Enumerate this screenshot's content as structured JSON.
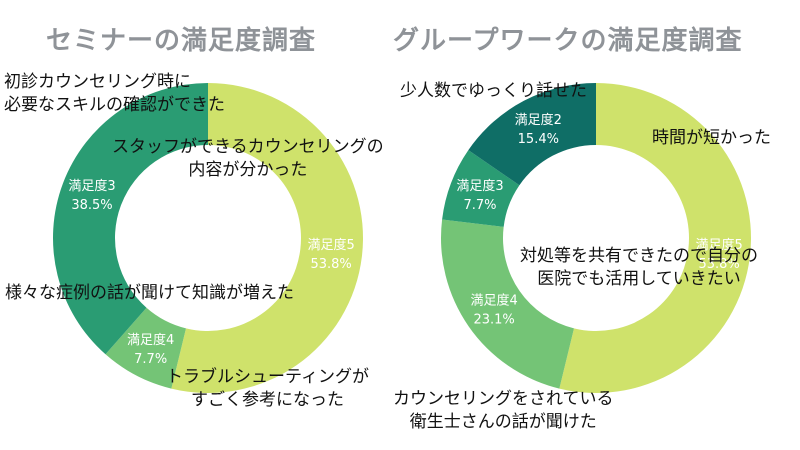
{
  "chart_data": [
    {
      "type": "pie",
      "title": "セミナーの満足度調査",
      "categories": [
        "満足度5",
        "満足度4",
        "満足度3"
      ],
      "values": [
        53.8,
        7.7,
        38.5
      ],
      "value_labels": [
        "53.8%",
        "7.7%",
        "38.5%"
      ],
      "colors": [
        "#cfe26b",
        "#74c476",
        "#2a9c73"
      ],
      "label_colors": [
        "#ffffff",
        "#ffffff",
        "#ffffff"
      ],
      "annotations": [
        "初診カウンセリング時に\n必要なスキルの確認ができた",
        "スタッフができるカウンセリングの\n内容が分かった",
        "様々な症例の話が聞けて知識が増えた",
        "トラブルシューティングが\nすごく参考になった"
      ]
    },
    {
      "type": "pie",
      "title": "グループワークの満足度調査",
      "categories": [
        "満足度5",
        "満足度4",
        "満足度3",
        "満足度2"
      ],
      "values": [
        53.8,
        23.1,
        7.7,
        15.4
      ],
      "value_labels": [
        "53.8%",
        "23.1%",
        "7.7%",
        "15.4%"
      ],
      "colors": [
        "#cfe26b",
        "#74c476",
        "#2a9c73",
        "#0f6e66"
      ],
      "label_colors": [
        "#ffffff",
        "#ffffff",
        "#ffffff",
        "#ffffff"
      ],
      "annotations": [
        "少人数でゆっくり話せた",
        "時間が短かった",
        "対処等を共有できたので自分の\n医院でも活用していきたい",
        "カウンセリングをされている\n衛生士さんの話が聞けた"
      ]
    }
  ]
}
